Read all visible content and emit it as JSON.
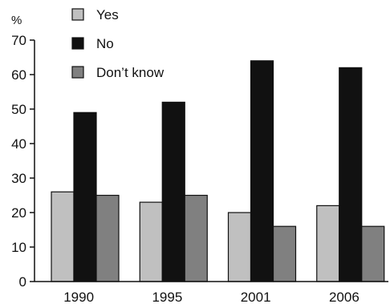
{
  "chart_data": {
    "type": "bar",
    "title": "",
    "xlabel": "",
    "ylabel": "%",
    "ylim": [
      0,
      70
    ],
    "yticks": [
      0,
      10,
      20,
      30,
      40,
      50,
      60,
      70
    ],
    "grid": false,
    "legend": "top-left",
    "categories": [
      "1990",
      "1995",
      "2001",
      "2006"
    ],
    "series": [
      {
        "name": "Yes",
        "color": "#c0c0c0",
        "values": [
          26,
          23,
          20,
          22
        ]
      },
      {
        "name": "No",
        "color": "#111111",
        "values": [
          49,
          52,
          64,
          62
        ]
      },
      {
        "name": "Don’t know",
        "color": "#808080",
        "values": [
          25,
          25,
          16,
          16
        ]
      }
    ]
  }
}
